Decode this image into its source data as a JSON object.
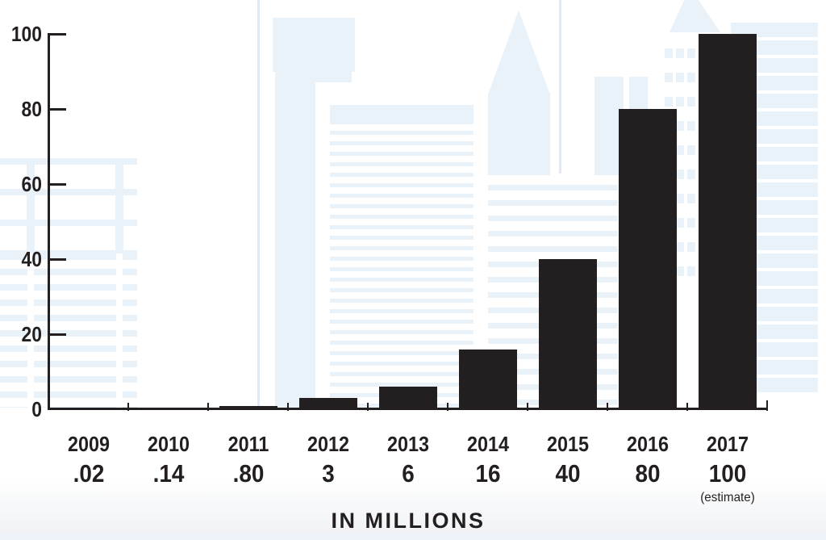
{
  "title": "IN MILLIONS",
  "colors": {
    "bar": "#231f20",
    "axis": "#231f20",
    "text": "#231f20",
    "skyline": "#e9f1f9",
    "skyline_line": "#dfeaf5",
    "bottom_strip": "#eef3f9"
  },
  "chart_data": {
    "type": "bar",
    "categories": [
      "2009",
      "2010",
      "2011",
      "2012",
      "2013",
      "2014",
      "2015",
      "2016",
      "2017"
    ],
    "values": [
      0.02,
      0.14,
      0.8,
      3,
      6,
      16,
      40,
      80,
      100
    ],
    "value_labels": [
      ".02",
      ".14",
      ".80",
      "3",
      "6",
      "16",
      "40",
      "80",
      "100"
    ],
    "annotations": [
      {
        "category": "2017",
        "text": "(estimate)"
      }
    ],
    "title": "IN MILLIONS",
    "xlabel": "",
    "ylabel": "",
    "ylim": [
      0,
      100
    ],
    "yticks": [
      0,
      20,
      40,
      60,
      80,
      100
    ],
    "ytick_labels": [
      "0",
      "20",
      "40",
      "60",
      "80",
      "100"
    ],
    "grid": false,
    "legend": null,
    "background_theme": "light blue city skyline silhouette"
  }
}
